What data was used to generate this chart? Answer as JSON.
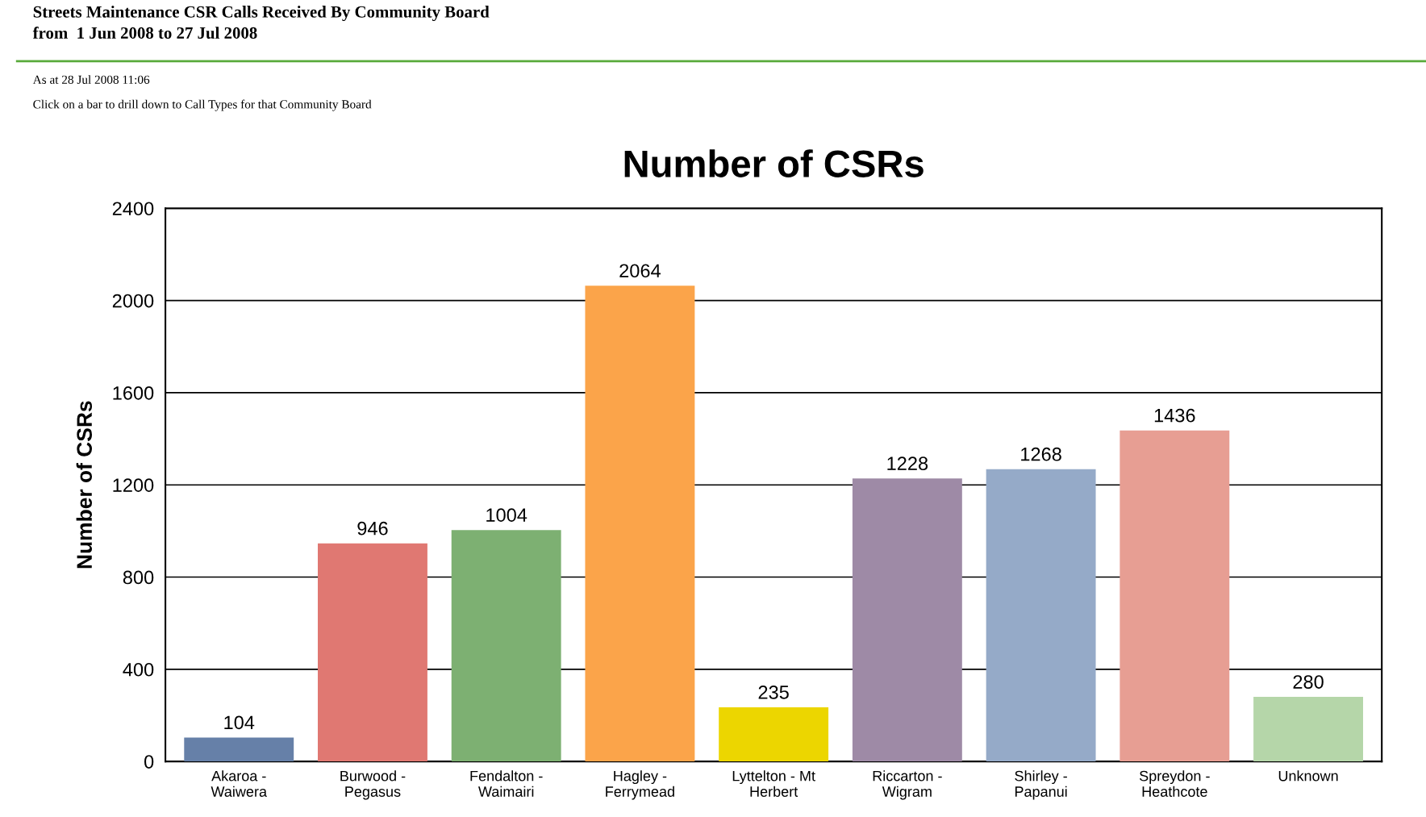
{
  "chart_data": {
    "type": "bar",
    "title": "Number of CSRs",
    "subtitle": "Streets Maintenance CSR Calls Received By Community Board\nfrom  1 Jun 2008 to 27 Jul 2008",
    "annotations": [
      "As at 28 Jul 2008 11:06",
      "Click on a bar to drill down to Call Types for that Community Board"
    ],
    "ylabel": "Number of CSRs",
    "categories": [
      "Akaroa -\nWaiwera",
      "Burwood -\nPegasus",
      "Fendalton -\nWaimairi",
      "Hagley -\nFerrymead",
      "Lyttelton - Mt\nHerbert",
      "Riccarton -\nWigram",
      "Shirley -\nPapanui",
      "Spreydon -\nHeathcote",
      "Unknown"
    ],
    "values": [
      104,
      946,
      1004,
      2064,
      235,
      1228,
      1268,
      1436,
      280
    ],
    "colors": [
      "#6680a8",
      "#e07872",
      "#7db072",
      "#fba44a",
      "#ecd600",
      "#9e8aa6",
      "#95aac8",
      "#e79e93",
      "#b5d6a9"
    ],
    "ylim": [
      0,
      2400
    ],
    "yticks": [
      0,
      400,
      800,
      1200,
      1600,
      2000,
      2400
    ],
    "grid": "y",
    "data_labels": true
  }
}
